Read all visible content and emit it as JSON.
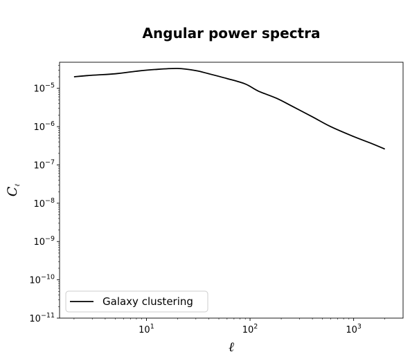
{
  "chart_data": {
    "type": "line",
    "title": "Angular power spectra",
    "xlabel": "ℓ",
    "ylabel": "C",
    "ylabel_subscript": "ℓ",
    "xscale": "log",
    "yscale": "log",
    "xlim": [
      1.45,
      3000
    ],
    "ylim": [
      1e-11,
      4.8e-05
    ],
    "xticks": [
      {
        "value": 10,
        "base": "10",
        "exp": "1"
      },
      {
        "value": 100,
        "base": "10",
        "exp": "2"
      },
      {
        "value": 1000,
        "base": "10",
        "exp": "3"
      }
    ],
    "yticks": [
      {
        "value": 1e-11,
        "base": "10",
        "exp": "−11"
      },
      {
        "value": 1e-10,
        "base": "10",
        "exp": "−10"
      },
      {
        "value": 1e-09,
        "base": "10",
        "exp": "−9"
      },
      {
        "value": 1e-08,
        "base": "10",
        "exp": "−8"
      },
      {
        "value": 1e-07,
        "base": "10",
        "exp": "−7"
      },
      {
        "value": 1e-06,
        "base": "10",
        "exp": "−6"
      },
      {
        "value": 1e-05,
        "base": "10",
        "exp": "−5"
      }
    ],
    "grid": false,
    "legend": "lower-left",
    "series": [
      {
        "name": "Galaxy clustering",
        "color": "#000000",
        "x": [
          2,
          3,
          5,
          8,
          12,
          20,
          30,
          40,
          60,
          90,
          120,
          180,
          250,
          400,
          600,
          1000,
          1500,
          2000
        ],
        "y": [
          2e-05,
          2.2e-05,
          2.4e-05,
          2.8e-05,
          3.1e-05,
          3.3e-05,
          2.9e-05,
          2.4e-05,
          1.8e-05,
          1.3e-05,
          8.5e-06,
          5.5e-06,
          3.5e-06,
          1.8e-06,
          1e-06,
          5.5e-07,
          3.6e-07,
          2.6e-07
        ]
      }
    ]
  }
}
